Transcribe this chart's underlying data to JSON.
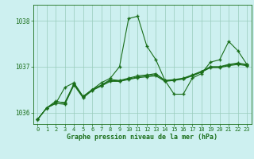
{
  "title": "Graphe pression niveau de la mer (hPa)",
  "bg_color": "#cdf0f0",
  "line_color": "#1a6e1a",
  "grid_color": "#99ccbb",
  "xlim": [
    -0.5,
    23.5
  ],
  "ylim": [
    1035.75,
    1038.35
  ],
  "yticks": [
    1036,
    1037,
    1038
  ],
  "xticks": [
    0,
    1,
    2,
    3,
    4,
    5,
    6,
    7,
    8,
    9,
    10,
    11,
    12,
    13,
    14,
    15,
    16,
    17,
    18,
    19,
    20,
    21,
    22,
    23
  ],
  "y_main": [
    1035.85,
    1036.1,
    1036.2,
    1036.55,
    1036.65,
    1036.35,
    1036.5,
    1036.65,
    1036.75,
    1037.0,
    1038.05,
    1038.1,
    1037.45,
    1037.15,
    1036.7,
    1036.4,
    1036.4,
    1036.75,
    1036.85,
    1037.1,
    1037.15,
    1037.55,
    1037.35,
    1037.05
  ],
  "y_trend1": [
    1035.85,
    1036.1,
    1036.25,
    1036.2,
    1036.62,
    1036.35,
    1036.5,
    1036.6,
    1036.72,
    1036.7,
    1036.75,
    1036.8,
    1036.82,
    1036.85,
    1036.7,
    1036.72,
    1036.75,
    1036.82,
    1036.9,
    1037.0,
    1037.0,
    1037.05,
    1037.08,
    1037.05
  ],
  "y_trend2": [
    1035.85,
    1036.1,
    1036.2,
    1036.18,
    1036.6,
    1036.32,
    1036.48,
    1036.58,
    1036.68,
    1036.68,
    1036.72,
    1036.76,
    1036.78,
    1036.8,
    1036.68,
    1036.7,
    1036.73,
    1036.8,
    1036.88,
    1036.98,
    1036.98,
    1037.02,
    1037.05,
    1037.02
  ],
  "y_trend3": [
    1035.85,
    1036.1,
    1036.23,
    1036.22,
    1036.63,
    1036.34,
    1036.49,
    1036.59,
    1036.7,
    1036.69,
    1036.73,
    1036.78,
    1036.8,
    1036.83,
    1036.69,
    1036.71,
    1036.74,
    1036.81,
    1036.89,
    1036.99,
    1036.99,
    1037.04,
    1037.06,
    1037.04
  ],
  "marker": "+",
  "markersize": 3,
  "linewidth": 0.8,
  "tick_fontsize": 5,
  "xlabel_fontsize": 6,
  "ylabel_fontsize": 5.5
}
